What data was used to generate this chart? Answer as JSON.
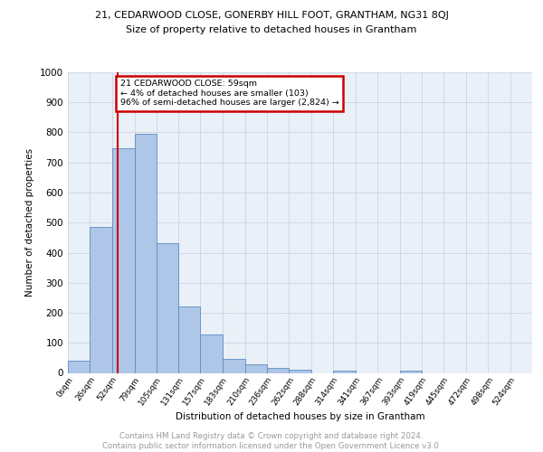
{
  "title_top": "21, CEDARWOOD CLOSE, GONERBY HILL FOOT, GRANTHAM, NG31 8QJ",
  "title_main": "Size of property relative to detached houses in Grantham",
  "xlabel": "Distribution of detached houses by size in Grantham",
  "ylabel": "Number of detached properties",
  "bin_labels": [
    "0sqm",
    "26sqm",
    "52sqm",
    "79sqm",
    "105sqm",
    "131sqm",
    "157sqm",
    "183sqm",
    "210sqm",
    "236sqm",
    "262sqm",
    "288sqm",
    "314sqm",
    "341sqm",
    "367sqm",
    "393sqm",
    "419sqm",
    "445sqm",
    "472sqm",
    "498sqm",
    "524sqm"
  ],
  "bar_heights": [
    42,
    485,
    748,
    795,
    432,
    222,
    128,
    48,
    30,
    18,
    10,
    0,
    8,
    0,
    0,
    8,
    0,
    0,
    0,
    0
  ],
  "bar_color": "#aec6e8",
  "bar_edge_color": "#5b8dc0",
  "vline_x": 59,
  "annotation_text": "21 CEDARWOOD CLOSE: 59sqm\n← 4% of detached houses are smaller (103)\n96% of semi-detached houses are larger (2,824) →",
  "annotation_box_color": "#ffffff",
  "annotation_box_edge": "#cc0000",
  "vline_color": "#cc0000",
  "ylim": [
    0,
    1000
  ],
  "yticks": [
    0,
    100,
    200,
    300,
    400,
    500,
    600,
    700,
    800,
    900,
    1000
  ],
  "grid_color": "#d0d8e8",
  "bg_color": "#eaf0f8",
  "footer_text": "Contains HM Land Registry data © Crown copyright and database right 2024.\nContains public sector information licensed under the Open Government Licence v3.0.",
  "bin_edges": [
    0,
    26,
    52,
    79,
    105,
    131,
    157,
    183,
    210,
    236,
    262,
    288,
    314,
    341,
    367,
    393,
    419,
    445,
    472,
    498,
    524
  ]
}
